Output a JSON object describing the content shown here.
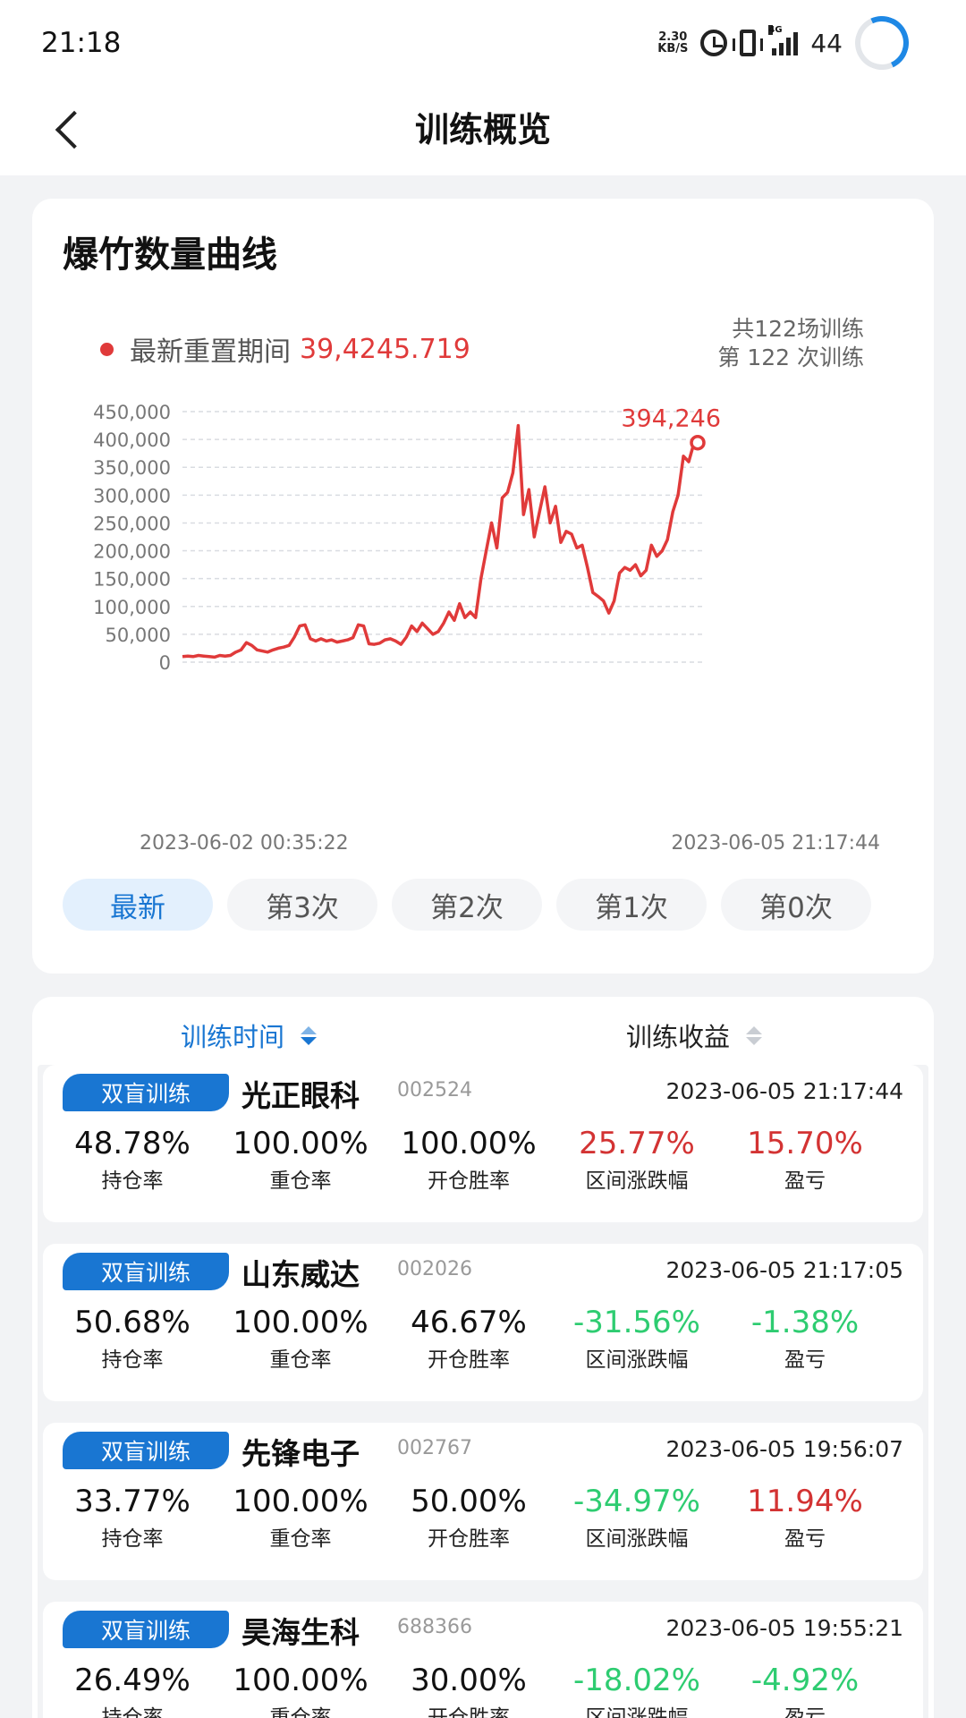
{
  "status_bar": {
    "time": "21:18",
    "net_speed_value": "2.30",
    "net_speed_unit": "KB/S",
    "network_type": "4G",
    "battery": "44"
  },
  "header": {
    "title": "训练概览"
  },
  "chart_card": {
    "title": "爆竹数量曲线",
    "legend_label": "最新重置期间",
    "legend_value": "39,4245.719",
    "summary_total": "共122场训练",
    "summary_current": "第 122 次训练",
    "date_start": "2023-06-02 00:35:22",
    "date_end": "2023-06-05 21:17:44",
    "tabs": [
      "最新",
      "第3次",
      "第2次",
      "第1次",
      "第0次"
    ]
  },
  "chart_data": {
    "type": "line",
    "series": [
      {
        "color": "#e03a3a",
        "values": [
          10000,
          11000,
          10000,
          12000,
          11000,
          10000,
          9000,
          12000,
          11000,
          12000,
          18000,
          22000,
          35000,
          30000,
          22000,
          20000,
          18000,
          22000,
          25000,
          27000,
          30000,
          45000,
          65000,
          67000,
          42000,
          38000,
          42000,
          38000,
          40000,
          36000,
          38000,
          40000,
          44000,
          67000,
          65000,
          33000,
          32000,
          34000,
          40000,
          42000,
          38000,
          32000,
          45000,
          65000,
          55000,
          70000,
          60000,
          50000,
          55000,
          70000,
          90000,
          75000,
          105000,
          80000,
          90000,
          80000,
          150000,
          200000,
          250000,
          205000,
          295000,
          305000,
          340000,
          425000,
          265000,
          310000,
          225000,
          270000,
          315000,
          250000,
          280000,
          215000,
          235000,
          230000,
          205000,
          210000,
          170000,
          125000,
          118000,
          110000,
          88000,
          110000,
          160000,
          170000,
          165000,
          175000,
          155000,
          165000,
          210000,
          190000,
          200000,
          220000,
          270000,
          300000,
          370000,
          360000,
          394246
        ]
      }
    ],
    "ylim": [
      0,
      450000
    ],
    "y_ticks": [
      "450,000",
      "400,000",
      "350,000",
      "300,000",
      "250,000",
      "200,000",
      "150,000",
      "100,000",
      "50,000",
      "0"
    ],
    "last_point_label": "394,246",
    "grid": true
  },
  "list": {
    "sort_time_label": "训练时间",
    "sort_profit_label": "训练收益",
    "records": [
      {
        "badge": "双盲训练",
        "name": "光正眼科",
        "code": "002524",
        "time": "2023-06-05 21:17:44",
        "metrics": [
          {
            "value": "48.78%",
            "label": "持仓率",
            "color": "#111111"
          },
          {
            "value": "100.00%",
            "label": "重仓率",
            "color": "#111111"
          },
          {
            "value": "100.00%",
            "label": "开仓胜率",
            "color": "#111111"
          },
          {
            "value": "25.77%",
            "label": "区间涨跌幅",
            "color": "#d33333"
          },
          {
            "value": "15.70%",
            "label": "盈亏",
            "color": "#d33333"
          }
        ]
      },
      {
        "badge": "双盲训练",
        "name": "山东威达",
        "code": "002026",
        "time": "2023-06-05 21:17:05",
        "metrics": [
          {
            "value": "50.68%",
            "label": "持仓率",
            "color": "#111111"
          },
          {
            "value": "100.00%",
            "label": "重仓率",
            "color": "#111111"
          },
          {
            "value": "46.67%",
            "label": "开仓胜率",
            "color": "#111111"
          },
          {
            "value": "-31.56%",
            "label": "区间涨跌幅",
            "color": "#2ecc71"
          },
          {
            "value": "-1.38%",
            "label": "盈亏",
            "color": "#2ecc71"
          }
        ]
      },
      {
        "badge": "双盲训练",
        "name": "先锋电子",
        "code": "002767",
        "time": "2023-06-05 19:56:07",
        "metrics": [
          {
            "value": "33.77%",
            "label": "持仓率",
            "color": "#111111"
          },
          {
            "value": "100.00%",
            "label": "重仓率",
            "color": "#111111"
          },
          {
            "value": "50.00%",
            "label": "开仓胜率",
            "color": "#111111"
          },
          {
            "value": "-34.97%",
            "label": "区间涨跌幅",
            "color": "#2ecc71"
          },
          {
            "value": "11.94%",
            "label": "盈亏",
            "color": "#d33333"
          }
        ]
      },
      {
        "badge": "双盲训练",
        "name": "昊海生科",
        "code": "688366",
        "time": "2023-06-05 19:55:21",
        "metrics": [
          {
            "value": "26.49%",
            "label": "持仓率",
            "color": "#111111"
          },
          {
            "value": "100.00%",
            "label": "重仓率",
            "color": "#111111"
          },
          {
            "value": "30.00%",
            "label": "开仓胜率",
            "color": "#111111"
          },
          {
            "value": "-18.02%",
            "label": "区间涨跌幅",
            "color": "#2ecc71"
          },
          {
            "value": "-4.92%",
            "label": "盈亏",
            "color": "#2ecc71"
          }
        ]
      }
    ]
  }
}
